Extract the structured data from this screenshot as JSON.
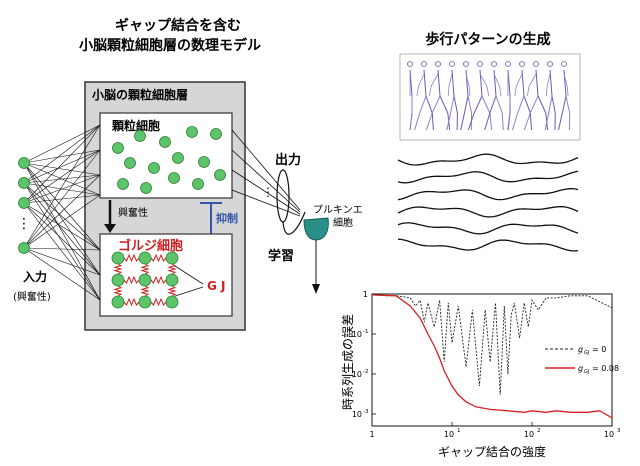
{
  "left_panel": {
    "title_line1": "ギャップ結合を含む",
    "title_line2": "小脳顆粒細胞層の数理モデル",
    "layer_label": "小脳の顆粒細胞層",
    "granule_label": "顆粒細胞",
    "golgi_label": "ゴルジ細胞",
    "excitatory_label": "興奮性",
    "inhibition_label": "抑制",
    "gj_label": "G J",
    "input_label": "入力",
    "input_sub_label": "(興奮性)",
    "output_label": "出力",
    "learning_label": "学習",
    "purkinje_label_line1": "プルキンエ",
    "purkinje_label_line2": "細胞"
  },
  "right_panel": {
    "title": "歩行パターンの生成",
    "stick_figure_color": "#6a55b8",
    "error_plot": {
      "ylabel": "時系列生成の誤差",
      "xlabel": "ギャップ結合の強度",
      "legend": [
        {
          "label": "g_GJ = 0",
          "display_sub": "GJ",
          "display_rest": " = 0",
          "style": "dashed",
          "color": "#222222"
        },
        {
          "label": "g_GJ = 0.08",
          "display_sub": "GJ",
          "display_rest": " = 0.08",
          "style": "solid",
          "color": "#d62020"
        }
      ]
    }
  },
  "colors": {
    "cell_fill": "#5cc46a",
    "cell_stroke": "#2e7d32",
    "gj_red": "#cc2222",
    "inhibition_blue": "#3355aa",
    "purkinje_fill": "#2a8f86",
    "layer_bg": "#d6d6d6"
  },
  "chart_data": {
    "type": "line",
    "xscale": "log",
    "yscale": "log",
    "xlim": [
      1,
      1000
    ],
    "ylim": [
      0.0005,
      1
    ],
    "x_ticks": [
      "1",
      "10^1",
      "10^2",
      "10^3"
    ],
    "y_ticks": [
      "10^-3",
      "10^-2",
      "10^-1",
      "1"
    ],
    "xlabel": "ギャップ結合の強度",
    "ylabel": "時系列生成の誤差",
    "series": [
      {
        "name": "g_GJ = 0",
        "style": "dashed",
        "x": [
          1,
          1.5,
          2,
          2.5,
          3,
          3.5,
          4,
          4.5,
          5,
          6,
          7,
          8,
          9,
          10,
          12,
          15,
          18,
          22,
          26,
          30,
          35,
          40,
          45,
          50,
          55,
          60,
          70,
          80,
          90,
          100,
          120,
          150,
          200,
          300,
          500,
          1000
        ],
        "y": [
          0.95,
          0.9,
          0.9,
          0.85,
          0.8,
          0.5,
          0.7,
          0.2,
          0.6,
          0.15,
          0.7,
          0.02,
          0.6,
          0.06,
          0.5,
          0.015,
          0.4,
          0.005,
          0.4,
          0.02,
          0.6,
          0.003,
          0.5,
          0.01,
          0.3,
          0.6,
          0.08,
          0.6,
          0.15,
          0.7,
          0.4,
          0.8,
          0.8,
          0.9,
          0.9,
          0.45
        ]
      },
      {
        "name": "g_GJ = 0.08",
        "style": "solid",
        "x": [
          1,
          2,
          3,
          4,
          5,
          6,
          7,
          8,
          10,
          12,
          15,
          20,
          30,
          50,
          80,
          100,
          150,
          200,
          300,
          500,
          700,
          1000
        ],
        "y": [
          0.95,
          0.9,
          0.5,
          0.25,
          0.1,
          0.05,
          0.025,
          0.012,
          0.005,
          0.003,
          0.002,
          0.0015,
          0.0013,
          0.0012,
          0.0011,
          0.0012,
          0.0011,
          0.0012,
          0.0011,
          0.0011,
          0.0012,
          0.0008
        ]
      }
    ]
  }
}
